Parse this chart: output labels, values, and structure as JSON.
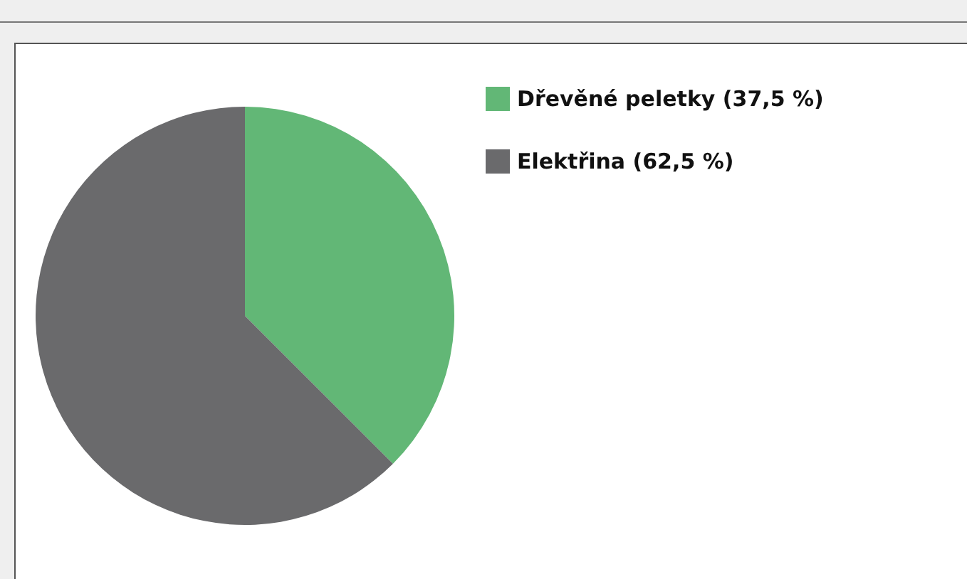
{
  "chart_data": {
    "type": "pie",
    "categories": [
      "Dřevěné peletky (37,5 %)",
      "Elektřina (62,5 %)"
    ],
    "values": [
      37.5,
      62.5
    ],
    "colors": [
      "#62b776",
      "#6a6a6c"
    ],
    "legend": "top right"
  }
}
